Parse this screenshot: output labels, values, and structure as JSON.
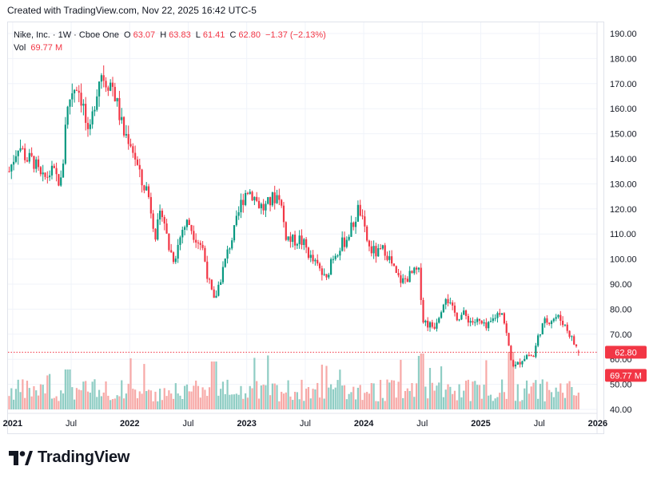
{
  "header": {
    "created_text": "Created with TradingView.com, Nov 22, 2025 16:42 UTC-5"
  },
  "legend": {
    "symbol": "Nike, Inc. · 1W · Cboe One",
    "o_label": "O",
    "o_value": "63.07",
    "h_label": "H",
    "h_value": "63.83",
    "l_label": "L",
    "l_value": "61.41",
    "c_label": "C",
    "c_value": "62.80",
    "change": "−1.37 (−2.13%)",
    "vol_label": "Vol",
    "vol_value": "69.77 M"
  },
  "branding": {
    "name": "TradingView"
  },
  "colors": {
    "up": "#089981",
    "down": "#f23645",
    "vol_up": "#8fcdc4",
    "vol_down": "#f7a9a7",
    "grid": "#f0f3fa",
    "text": "#131722",
    "border": "#e0e3eb"
  },
  "chart_data": {
    "type": "candlestick",
    "price_axis_ticks": [
      "190.00",
      "180.00",
      "170.00",
      "160.00",
      "150.00",
      "140.00",
      "130.00",
      "120.00",
      "110.00",
      "100.00",
      "90.00",
      "80.00",
      "70.00",
      "60.00",
      "50.00",
      "40.00"
    ],
    "time_axis_labels": [
      {
        "label": "2021",
        "t": 2021.0,
        "bold": true
      },
      {
        "label": "Jul",
        "t": 2021.5,
        "bold": false
      },
      {
        "label": "2022",
        "t": 2022.0,
        "bold": true
      },
      {
        "label": "Jul",
        "t": 2022.5,
        "bold": false
      },
      {
        "label": "2023",
        "t": 2023.0,
        "bold": true
      },
      {
        "label": "Jul",
        "t": 2023.5,
        "bold": false
      },
      {
        "label": "2024",
        "t": 2024.0,
        "bold": true
      },
      {
        "label": "Jul",
        "t": 2024.5,
        "bold": false
      },
      {
        "label": "2025",
        "t": 2025.0,
        "bold": true
      },
      {
        "label": "Jul",
        "t": 2025.5,
        "bold": false
      },
      {
        "label": "2026",
        "t": 2026.0,
        "bold": true
      }
    ],
    "x_range": [
      2020.96,
      2025.98
    ],
    "y_range": [
      40,
      193
    ],
    "last_price": 62.8,
    "last_price_label": "62.80",
    "volume_label": "69.77 M",
    "price_path": [
      [
        2020.97,
        135
      ],
      [
        2021.05,
        146
      ],
      [
        2021.12,
        140
      ],
      [
        2021.18,
        139
      ],
      [
        2021.25,
        131
      ],
      [
        2021.33,
        135
      ],
      [
        2021.42,
        130
      ],
      [
        2021.45,
        155
      ],
      [
        2021.5,
        167
      ],
      [
        2021.55,
        170
      ],
      [
        2021.6,
        162
      ],
      [
        2021.65,
        146
      ],
      [
        2021.7,
        163
      ],
      [
        2021.75,
        175
      ],
      [
        2021.8,
        171
      ],
      [
        2021.85,
        170
      ],
      [
        2021.9,
        160
      ],
      [
        2021.95,
        150
      ],
      [
        2022.0,
        148
      ],
      [
        2022.05,
        140
      ],
      [
        2022.1,
        130
      ],
      [
        2022.15,
        128
      ],
      [
        2022.22,
        110
      ],
      [
        2022.28,
        120
      ],
      [
        2022.33,
        105
      ],
      [
        2022.38,
        100
      ],
      [
        2022.45,
        112
      ],
      [
        2022.5,
        115
      ],
      [
        2022.55,
        110
      ],
      [
        2022.62,
        105
      ],
      [
        2022.68,
        90
      ],
      [
        2022.72,
        83
      ],
      [
        2022.78,
        93
      ],
      [
        2022.85,
        105
      ],
      [
        2022.9,
        112
      ],
      [
        2022.95,
        122
      ],
      [
        2023.0,
        128
      ],
      [
        2023.05,
        126
      ],
      [
        2023.1,
        122
      ],
      [
        2023.15,
        120
      ],
      [
        2023.22,
        124
      ],
      [
        2023.28,
        126
      ],
      [
        2023.33,
        110
      ],
      [
        2023.38,
        107
      ],
      [
        2023.45,
        108
      ],
      [
        2023.5,
        105
      ],
      [
        2023.55,
        100
      ],
      [
        2023.62,
        96
      ],
      [
        2023.68,
        91
      ],
      [
        2023.72,
        100
      ],
      [
        2023.78,
        104
      ],
      [
        2023.85,
        108
      ],
      [
        2023.92,
        115
      ],
      [
        2023.96,
        121
      ],
      [
        2024.0,
        112
      ],
      [
        2024.05,
        104
      ],
      [
        2024.12,
        102
      ],
      [
        2024.18,
        104
      ],
      [
        2024.22,
        100
      ],
      [
        2024.28,
        93
      ],
      [
        2024.33,
        91
      ],
      [
        2024.38,
        93
      ],
      [
        2024.45,
        95
      ],
      [
        2024.48,
        94
      ],
      [
        2024.5,
        76
      ],
      [
        2024.55,
        74
      ],
      [
        2024.6,
        73
      ],
      [
        2024.65,
        79
      ],
      [
        2024.7,
        86
      ],
      [
        2024.75,
        80
      ],
      [
        2024.8,
        77
      ],
      [
        2024.85,
        78
      ],
      [
        2024.92,
        75
      ],
      [
        2024.98,
        75
      ],
      [
        2025.05,
        72
      ],
      [
        2025.12,
        77
      ],
      [
        2025.18,
        80
      ],
      [
        2025.22,
        70
      ],
      [
        2025.26,
        59
      ],
      [
        2025.3,
        57
      ],
      [
        2025.35,
        60
      ],
      [
        2025.4,
        62
      ],
      [
        2025.45,
        61
      ],
      [
        2025.5,
        71
      ],
      [
        2025.55,
        75
      ],
      [
        2025.6,
        76
      ],
      [
        2025.65,
        77
      ],
      [
        2025.7,
        75
      ],
      [
        2025.75,
        71
      ],
      [
        2025.8,
        66
      ],
      [
        2025.85,
        62.8
      ]
    ]
  }
}
